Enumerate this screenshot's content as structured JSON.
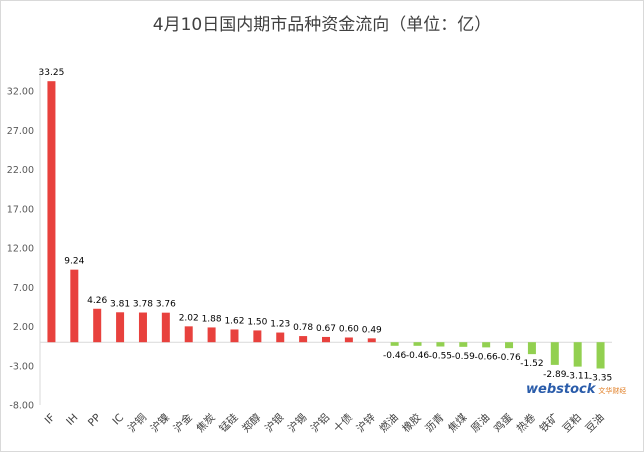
{
  "chart_data": {
    "type": "bar",
    "title": "4月10日国内期市品种资金流向（单位：亿）",
    "xlabel": "",
    "ylabel": "",
    "ylim": [
      -8,
      35
    ],
    "yticks": [
      "-8.00",
      "-3.00",
      "2.00",
      "7.00",
      "12.00",
      "17.00",
      "22.00",
      "27.00",
      "32.00"
    ],
    "ytick_values": [
      -8,
      -3,
      2,
      7,
      12,
      17,
      22,
      27,
      32
    ],
    "grid": false,
    "legend": "none",
    "categories": [
      "IF",
      "IH",
      "PP",
      "IC",
      "沪铜",
      "沪镍",
      "沪金",
      "焦炭",
      "锰硅",
      "郑醇",
      "沪银",
      "沪锡",
      "沪铝",
      "十债",
      "沪锌",
      "燃油",
      "橡胶",
      "沥青",
      "焦煤",
      "原油",
      "鸡蛋",
      "热卷",
      "铁矿",
      "豆粕",
      "豆油"
    ],
    "values": [
      33.25,
      9.24,
      4.26,
      3.81,
      3.78,
      3.76,
      2.02,
      1.88,
      1.62,
      1.5,
      1.23,
      0.78,
      0.67,
      0.6,
      0.49,
      -0.46,
      -0.46,
      -0.55,
      -0.59,
      -0.66,
      -0.76,
      -1.52,
      -2.89,
      -3.11,
      -3.35
    ],
    "value_labels": [
      "33.25",
      "9.24",
      "4.26",
      "3.81",
      "3.78",
      "3.76",
      "2.02",
      "1.88",
      "1.62",
      "1.50",
      "1.23",
      "0.78",
      "0.67",
      "0.60",
      "0.49",
      "-0.46",
      "-0.46",
      "-0.55",
      "-0.59",
      "-0.66",
      "-0.76",
      "-1.52",
      "-2.89",
      "-3.11",
      "-3.35"
    ],
    "colors": {
      "positive": "#e8413d",
      "negative": "#92d050"
    }
  },
  "watermark": {
    "brand": "webstock",
    "sub": "文华财经"
  }
}
